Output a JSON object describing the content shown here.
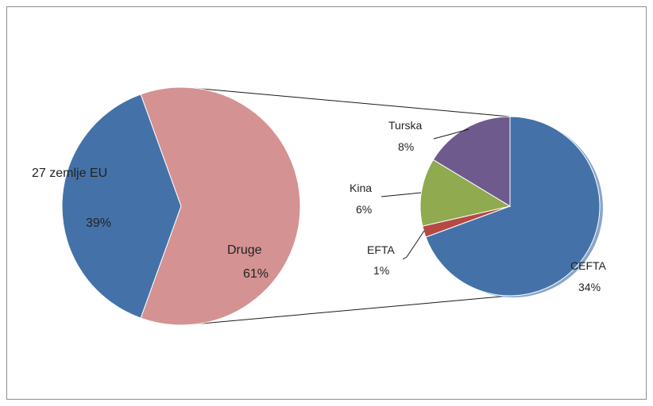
{
  "chart_data": {
    "type": "pie",
    "subtype": "pie-of-pie",
    "main_pie": {
      "slices": [
        {
          "name": "27 zemlje EU",
          "value": 39,
          "label": "39%",
          "color": "#4472a8"
        },
        {
          "name": "Druge",
          "value": 61,
          "label": "61%",
          "color": "#d49292"
        }
      ]
    },
    "secondary_pie": {
      "expands": "Druge",
      "slices": [
        {
          "name": "CEFTA",
          "value": 34,
          "label": "34%",
          "color": "#4472a8"
        },
        {
          "name": "EFTA",
          "value": 1,
          "label": "1%",
          "color": "#b54a45"
        },
        {
          "name": "Kina",
          "value": 6,
          "label": "6%",
          "color": "#8faa4f"
        },
        {
          "name": "Turska",
          "value": 8,
          "label": "8%",
          "color": "#6f5a8e"
        }
      ]
    },
    "legend": "none",
    "title": ""
  }
}
